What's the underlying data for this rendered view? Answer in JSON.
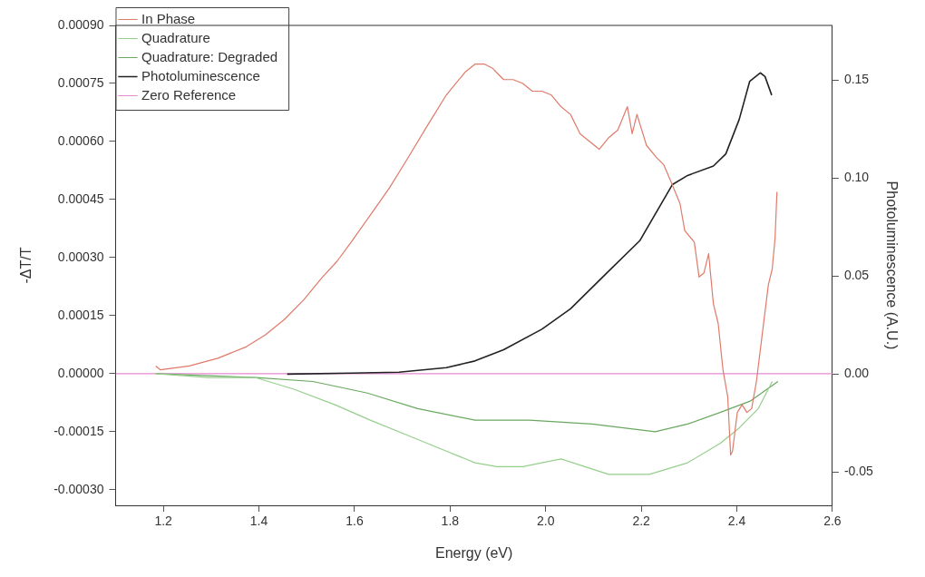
{
  "chart_data": {
    "type": "line",
    "xlabel": "Energy (eV)",
    "ylabel": "-ΔT/T",
    "y2label": "Photoluminescence (A.U.)",
    "xlim": [
      1.1,
      2.6
    ],
    "xticks": [
      {
        "value": 1.2,
        "label": "1.2"
      },
      {
        "value": 1.4,
        "label": "1.4"
      },
      {
        "value": 1.6,
        "label": "1.6"
      },
      {
        "value": 1.8,
        "label": "1.8"
      },
      {
        "value": 2.0,
        "label": "2.0"
      },
      {
        "value": 2.2,
        "label": "2.2"
      },
      {
        "value": 2.4,
        "label": "2.4"
      },
      {
        "value": 2.6,
        "label": "2.6"
      }
    ],
    "ylim": [
      -0.00034,
      0.0009
    ],
    "yticks": [
      {
        "value": -0.0003,
        "label": "-0.00030"
      },
      {
        "value": -0.00015,
        "label": "-0.00015"
      },
      {
        "value": 0,
        "label": "0.00000"
      },
      {
        "value": 0.00015,
        "label": "0.00015"
      },
      {
        "value": 0.0003,
        "label": "0.00030"
      },
      {
        "value": 0.00045,
        "label": "0.00045"
      },
      {
        "value": 0.0006,
        "label": "0.00060"
      },
      {
        "value": 0.00075,
        "label": "0.00075"
      },
      {
        "value": 0.0009,
        "label": "0.00090"
      }
    ],
    "y2lim": [
      -0.067,
      0.178
    ],
    "y2ticks": [
      {
        "value": -0.05,
        "label": "-0.05"
      },
      {
        "value": 0,
        "label": "0.00"
      },
      {
        "value": 0.05,
        "label": "0.05"
      },
      {
        "value": 0.1,
        "label": "0.10"
      },
      {
        "value": 0.15,
        "label": "0.15"
      }
    ],
    "grid": false,
    "legend": "top left",
    "marker": "none",
    "line_style": "solid",
    "series": [
      {
        "name": "In Phase",
        "color": "#e07a6a",
        "x": [
          1.184,
          1.194,
          1.254,
          1.314,
          1.374,
          1.413,
          1.453,
          1.493,
          1.533,
          1.563,
          1.593,
          1.633,
          1.673,
          1.713,
          1.752,
          1.792,
          1.812,
          1.832,
          1.852,
          1.872,
          1.888,
          1.904,
          1.912,
          1.932,
          1.952,
          1.972,
          1.992,
          2.012,
          2.032,
          2.052,
          2.072,
          2.092,
          2.112,
          2.132,
          2.151,
          2.171,
          2.181,
          2.191,
          2.211,
          2.231,
          2.247,
          2.261,
          2.281,
          2.291,
          2.311,
          2.321,
          2.331,
          2.341,
          2.351,
          2.361,
          2.371,
          2.381,
          2.387,
          2.391,
          2.401,
          2.411,
          2.421,
          2.431,
          2.441,
          2.451,
          2.461,
          2.466,
          2.474,
          2.48,
          2.484
        ],
        "values": [
          2e-05,
          1e-05,
          2e-05,
          4e-05,
          7e-05,
          0.0001,
          0.00014,
          0.00019,
          0.00025,
          0.00029,
          0.00034,
          0.00041,
          0.00048,
          0.00056,
          0.00064,
          0.00072,
          0.00075,
          0.00078,
          0.0008,
          0.0008,
          0.00079,
          0.00077,
          0.00076,
          0.00076,
          0.00075,
          0.00073,
          0.00073,
          0.00072,
          0.00069,
          0.00067,
          0.00062,
          0.0006,
          0.00058,
          0.00061,
          0.00063,
          0.00069,
          0.00062,
          0.00067,
          0.00059,
          0.00056,
          0.00054,
          0.0005,
          0.00044,
          0.00037,
          0.00034,
          0.00025,
          0.00026,
          0.00031,
          0.00018,
          0.00013,
          1e-05,
          -6e-05,
          -0.00021,
          -0.0002,
          -0.0001,
          -8e-05,
          -0.0001,
          -9e-05,
          -2e-05,
          8e-05,
          0.00018,
          0.00023,
          0.00027,
          0.00035,
          0.00047
        ]
      },
      {
        "name": "Quadrature",
        "color": "#95cf8c",
        "x": [
          1.184,
          1.294,
          1.393,
          1.473,
          1.559,
          1.633,
          1.713,
          1.792,
          1.852,
          1.898,
          1.952,
          1.992,
          2.032,
          2.082,
          2.132,
          2.217,
          2.297,
          2.365,
          2.405,
          2.445,
          2.474
        ],
        "values": [
          0,
          -1e-05,
          -1e-05,
          -4e-05,
          -8e-05,
          -0.00012,
          -0.00016,
          -0.0002,
          -0.00023,
          -0.00024,
          -0.00024,
          -0.00023,
          -0.00022,
          -0.00024,
          -0.00026,
          -0.00026,
          -0.00023,
          -0.00018,
          -0.00014,
          -9e-05,
          -2e-05
        ]
      },
      {
        "name": "Quadrature: Degraded",
        "color": "#6aa860",
        "x": [
          1.184,
          1.393,
          1.513,
          1.627,
          1.732,
          1.852,
          1.966,
          2.097,
          2.229,
          2.297,
          2.365,
          2.429,
          2.486
        ],
        "values": [
          0,
          -1e-05,
          -2e-05,
          -5e-05,
          -9e-05,
          -0.00012,
          -0.00012,
          -0.00013,
          -0.00015,
          -0.00013,
          -0.0001,
          -7e-05,
          -2e-05
        ]
      },
      {
        "name": "Photoluminescence",
        "color": "#222222",
        "axis": "y2",
        "x": [
          1.459,
          1.593,
          1.693,
          1.792,
          1.852,
          1.912,
          1.992,
          2.052,
          2.127,
          2.197,
          2.265,
          2.297,
          2.351,
          2.377,
          2.405,
          2.427,
          2.449,
          2.459,
          2.473
        ],
        "values": [
          0,
          0.0005,
          0.001,
          0.0033,
          0.0067,
          0.0124,
          0.0229,
          0.0333,
          0.0514,
          0.0681,
          0.0967,
          0.1014,
          0.1062,
          0.1124,
          0.13,
          0.1495,
          0.1538,
          0.1519,
          0.1424
        ]
      },
      {
        "name": "Zero Reference",
        "color": "#e58ad0",
        "x": [
          1.1,
          2.6
        ],
        "values": [
          0,
          0
        ]
      }
    ]
  }
}
